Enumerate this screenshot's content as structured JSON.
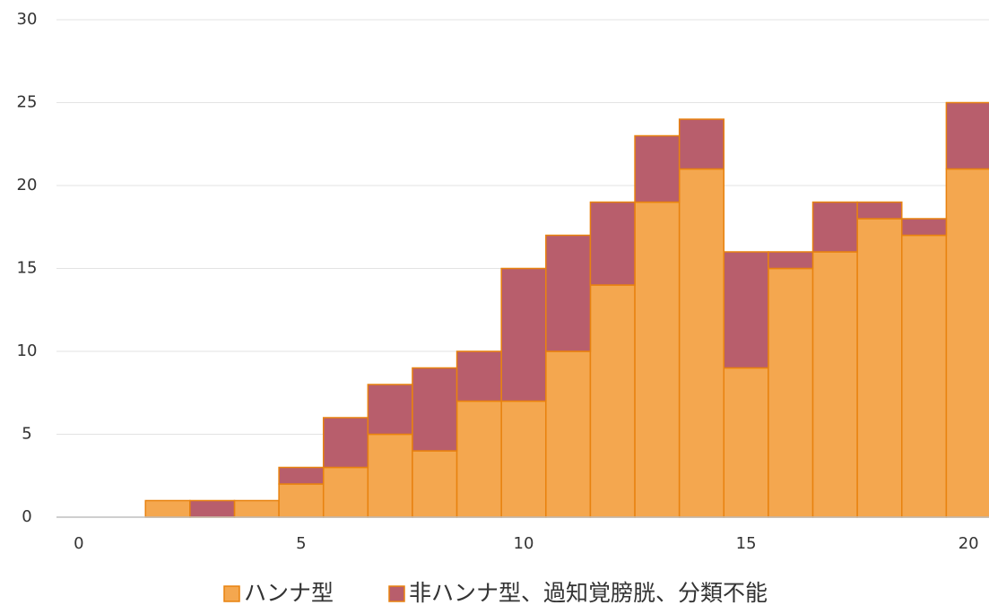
{
  "chart_data": {
    "type": "bar",
    "stacked": true,
    "x": [
      2,
      3,
      4,
      5,
      6,
      7,
      8,
      9,
      10,
      11,
      12,
      13,
      14,
      15,
      16,
      17,
      18,
      19,
      20
    ],
    "series": [
      {
        "name": "ハンナ型",
        "color": "#f4a74f",
        "edge": "#e8820f",
        "values": [
          1,
          0,
          1,
          2,
          3,
          5,
          4,
          7,
          7,
          10,
          14,
          19,
          21,
          9,
          15,
          16,
          18,
          17,
          21
        ]
      },
      {
        "name": "非ハンナ型、過知覚膀胱、分類不能",
        "color": "#b85e6c",
        "edge": "#e8820f",
        "values": [
          0,
          1,
          0,
          1,
          3,
          3,
          5,
          3,
          8,
          7,
          5,
          4,
          3,
          7,
          1,
          3,
          1,
          1,
          4
        ]
      }
    ],
    "xlim": [
      -0.5,
      20.5
    ],
    "xticks": [
      0,
      5,
      10,
      15,
      20
    ],
    "ylim": [
      0,
      30
    ],
    "yticks": [
      0,
      5,
      10,
      15,
      20,
      25,
      30
    ],
    "grid": true,
    "legend": "bottom"
  }
}
